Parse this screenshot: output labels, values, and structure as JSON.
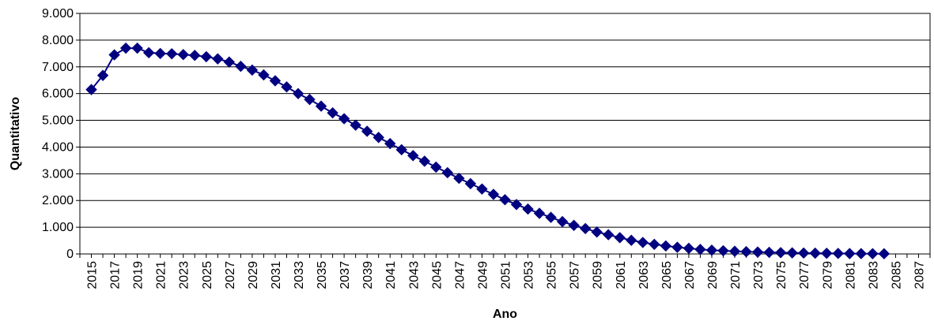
{
  "chart_data": {
    "type": "line",
    "title": "",
    "xlabel": "Ano",
    "ylabel": "Quantitativo",
    "xlim": [
      2014,
      2088
    ],
    "ylim": [
      0,
      9000
    ],
    "grid": "horizontal",
    "legend": "none",
    "x_ticks": [
      2015,
      2017,
      2019,
      2021,
      2023,
      2025,
      2027,
      2029,
      2031,
      2033,
      2035,
      2037,
      2039,
      2041,
      2043,
      2045,
      2047,
      2049,
      2051,
      2053,
      2055,
      2057,
      2059,
      2061,
      2063,
      2065,
      2067,
      2069,
      2071,
      2073,
      2075,
      2077,
      2079,
      2081,
      2083,
      2085,
      2087
    ],
    "x_tick_labels": [
      "2015",
      "2017",
      "2019",
      "2021",
      "2023",
      "2025",
      "2027",
      "2029",
      "2031",
      "2033",
      "2035",
      "2037",
      "2039",
      "2041",
      "2043",
      "2045",
      "2047",
      "2049",
      "2051",
      "2053",
      "2055",
      "2057",
      "2059",
      "2061",
      "2063",
      "2065",
      "2067",
      "2069",
      "2071",
      "2073",
      "2075",
      "2077",
      "2079",
      "2081",
      "2083",
      "2085",
      "2087"
    ],
    "y_ticks": [
      0,
      1000,
      2000,
      3000,
      4000,
      5000,
      6000,
      7000,
      8000,
      9000
    ],
    "y_tick_labels": [
      "0",
      "1.000",
      "2.000",
      "3.000",
      "4.000",
      "5.000",
      "6.000",
      "7.000",
      "8.000",
      "9.000"
    ],
    "series": [
      {
        "color": "#000080",
        "marker": "diamond",
        "x": [
          2015,
          2016,
          2017,
          2018,
          2019,
          2020,
          2021,
          2022,
          2023,
          2024,
          2025,
          2026,
          2027,
          2028,
          2029,
          2030,
          2031,
          2032,
          2033,
          2034,
          2035,
          2036,
          2037,
          2038,
          2039,
          2040,
          2041,
          2042,
          2043,
          2044,
          2045,
          2046,
          2047,
          2048,
          2049,
          2050,
          2051,
          2052,
          2053,
          2054,
          2055,
          2056,
          2057,
          2058,
          2059,
          2060,
          2061,
          2062,
          2063,
          2064,
          2065,
          2066,
          2067,
          2068,
          2069,
          2070,
          2071,
          2072,
          2073,
          2074,
          2075,
          2076,
          2077,
          2078,
          2079,
          2080,
          2081,
          2082,
          2083,
          2084
        ],
        "values": [
          6150,
          6680,
          7450,
          7700,
          7700,
          7530,
          7500,
          7490,
          7460,
          7430,
          7380,
          7300,
          7180,
          7020,
          6880,
          6700,
          6480,
          6250,
          6000,
          5780,
          5530,
          5280,
          5060,
          4820,
          4590,
          4360,
          4130,
          3900,
          3680,
          3470,
          3250,
          3040,
          2830,
          2630,
          2430,
          2230,
          2030,
          1850,
          1680,
          1520,
          1370,
          1210,
          1070,
          950,
          820,
          720,
          610,
          510,
          430,
          360,
          300,
          250,
          210,
          170,
          140,
          120,
          100,
          85,
          70,
          60,
          50,
          40,
          35,
          30,
          25,
          20,
          15,
          12,
          10,
          8
        ]
      }
    ]
  }
}
